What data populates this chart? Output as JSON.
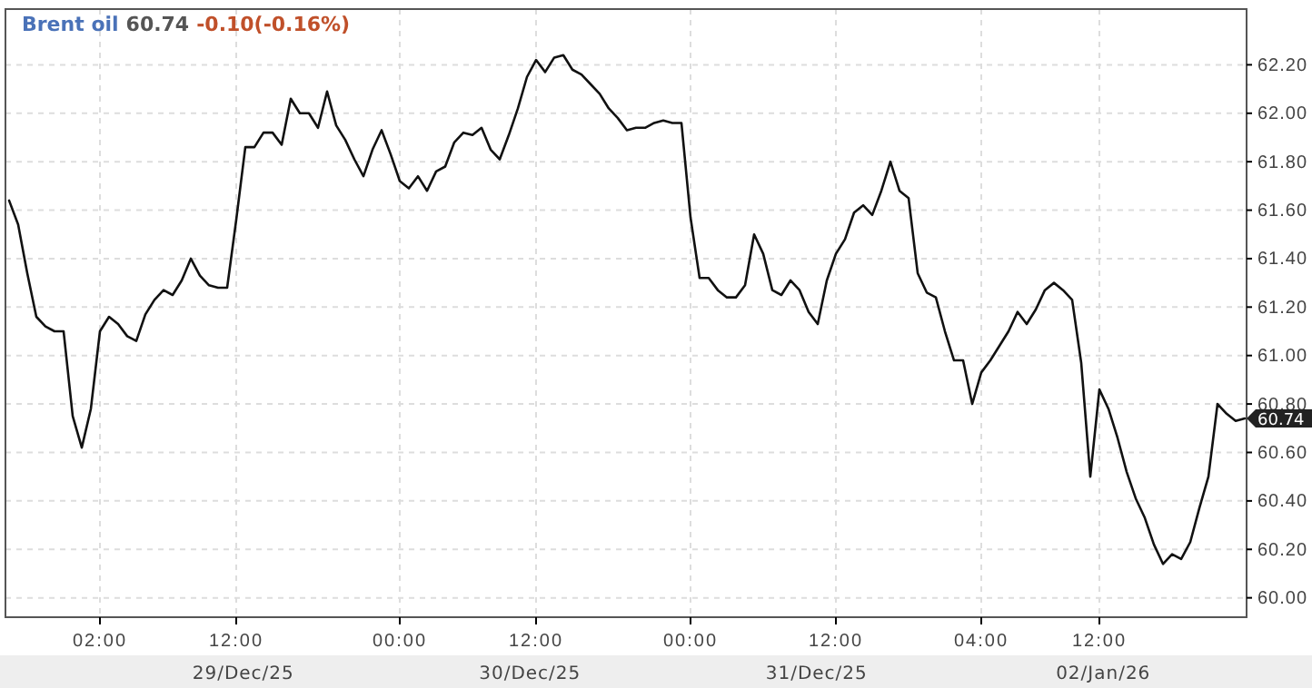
{
  "chart_data": {
    "type": "line",
    "title": "Brent oil",
    "annotations": [
      "60.74",
      "-0.10(-0.16%)",
      "29/Dec/25",
      "30/Dec/25",
      "31/Dec/25",
      "02/Jan/26",
      "60.74"
    ],
    "categories": [
      null,
      null,
      null,
      null,
      null,
      null,
      null,
      null,
      null,
      null,
      "02:00",
      null,
      null,
      null,
      null,
      null,
      null,
      null,
      null,
      null,
      null,
      null,
      null,
      null,
      null,
      "12:00",
      null,
      null,
      null,
      null,
      null,
      null,
      null,
      null,
      null,
      null,
      null,
      null,
      null,
      null,
      null,
      null,
      null,
      "00:00",
      null,
      null,
      null,
      null,
      null,
      null,
      null,
      null,
      null,
      null,
      null,
      null,
      null,
      null,
      "12:00",
      null,
      null,
      null,
      null,
      null,
      null,
      null,
      null,
      null,
      null,
      null,
      null,
      null,
      null,
      null,
      null,
      "00:00",
      null,
      null,
      null,
      null,
      null,
      null,
      null,
      null,
      null,
      null,
      null,
      null,
      null,
      null,
      null,
      "12:00",
      null,
      null,
      null,
      null,
      null,
      null,
      null,
      null,
      null,
      null,
      null,
      null,
      null,
      null,
      null,
      "04:00",
      null,
      null,
      null,
      null,
      null,
      null,
      null,
      null,
      null,
      null,
      null,
      null,
      "12:00",
      null,
      null,
      null,
      null,
      null,
      null,
      null,
      null,
      null,
      null,
      null,
      null,
      null,
      null,
      null,
      null
    ],
    "series": [
      {
        "color": "#111111",
        "values": [
          61.64,
          61.54,
          61.34,
          61.16,
          61.12,
          61.1,
          61.1,
          60.75,
          60.62,
          60.78,
          61.1,
          61.16,
          61.13,
          61.08,
          61.06,
          61.17,
          61.23,
          61.27,
          61.25,
          61.31,
          61.4,
          61.33,
          61.29,
          61.28,
          61.28,
          61.56,
          61.86,
          61.86,
          61.92,
          61.92,
          61.87,
          62.06,
          62.0,
          62.0,
          61.94,
          62.09,
          61.95,
          61.89,
          61.81,
          61.74,
          61.85,
          61.93,
          61.83,
          61.72,
          61.69,
          61.74,
          61.68,
          61.76,
          61.78,
          61.88,
          61.92,
          61.91,
          61.94,
          61.85,
          61.81,
          61.91,
          62.02,
          62.15,
          62.22,
          62.17,
          62.23,
          62.24,
          62.18,
          62.16,
          62.12,
          62.08,
          62.02,
          61.98,
          61.93,
          61.94,
          61.94,
          61.96,
          61.97,
          61.96,
          61.96,
          61.57,
          61.32,
          61.32,
          61.27,
          61.24,
          61.24,
          61.29,
          61.5,
          61.42,
          61.27,
          61.25,
          61.31,
          61.27,
          61.18,
          61.13,
          61.31,
          61.42,
          61.48,
          61.59,
          61.62,
          61.58,
          61.68,
          61.8,
          61.68,
          61.65,
          61.34,
          61.26,
          61.24,
          61.1,
          60.98,
          60.98,
          60.8,
          60.93,
          60.98,
          61.04,
          61.1,
          61.18,
          61.13,
          61.19,
          61.27,
          61.3,
          61.27,
          61.23,
          60.97,
          60.5,
          60.86,
          60.78,
          60.66,
          60.52,
          60.41,
          60.33,
          60.22,
          60.14,
          60.18,
          60.16,
          60.23,
          60.37,
          60.5,
          60.8,
          60.76,
          60.73,
          60.74
        ]
      }
    ],
    "ylim": [
      59.92,
      62.43
    ],
    "yticks": [
      {
        "value": 60,
        "label": "60.00"
      },
      {
        "value": 60.2,
        "label": "60.20"
      },
      {
        "value": 60.4,
        "label": "60.40"
      },
      {
        "value": 60.6,
        "label": "60.60"
      },
      {
        "value": 60.8,
        "label": "60.80"
      },
      {
        "value": 61,
        "label": "61.00"
      },
      {
        "value": 61.2,
        "label": "61.20"
      },
      {
        "value": 61.4,
        "label": "61.40"
      },
      {
        "value": 61.6,
        "label": "61.60"
      },
      {
        "value": 61.8,
        "label": "61.80"
      },
      {
        "value": 62,
        "label": "62.00"
      },
      {
        "value": 62.2,
        "label": "62.20"
      }
    ],
    "grid": true,
    "line_style": "solid",
    "marker": "none"
  }
}
